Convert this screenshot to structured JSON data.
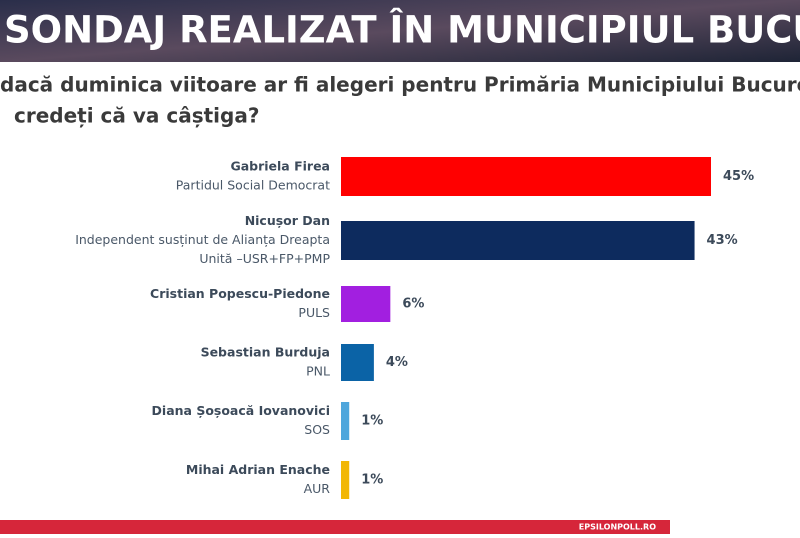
{
  "header": {
    "title": "SONDAJ REALIZAT ÎN MUNICIPIUL BUCUREȘT"
  },
  "question": [
    "dacă duminica viitoare ar fi alegeri pentru Primăria Municipiului București, c",
    "credeți că va câștiga?"
  ],
  "chart_data": {
    "type": "hbar",
    "categories": [
      "Gabriela Firea",
      "Nicușor Dan",
      "Cristian Popescu-Piedone",
      "Sebastian Burduja",
      "Diana Șoșoacă Iovanovici",
      "Mihai Adrian Enache"
    ],
    "parties": [
      [
        "Partidul Social Democrat"
      ],
      [
        "Independent susținut de Alianța Dreapta",
        "Unită –USR+FP+PMP"
      ],
      [
        "PULS"
      ],
      [
        "PNL"
      ],
      [
        "SOS"
      ],
      [
        "AUR"
      ]
    ],
    "values": [
      45,
      43,
      6,
      4,
      1,
      1
    ],
    "value_labels": [
      "45%",
      "43%",
      "6%",
      "4%",
      "1%",
      "1%"
    ],
    "colors": [
      "#ff0000",
      "#0d2b5e",
      "#a21fe0",
      "#0b63a6",
      "#4ea6dc",
      "#f2b705"
    ]
  },
  "footer": {
    "source": "EPSILONPOLL.RO"
  }
}
